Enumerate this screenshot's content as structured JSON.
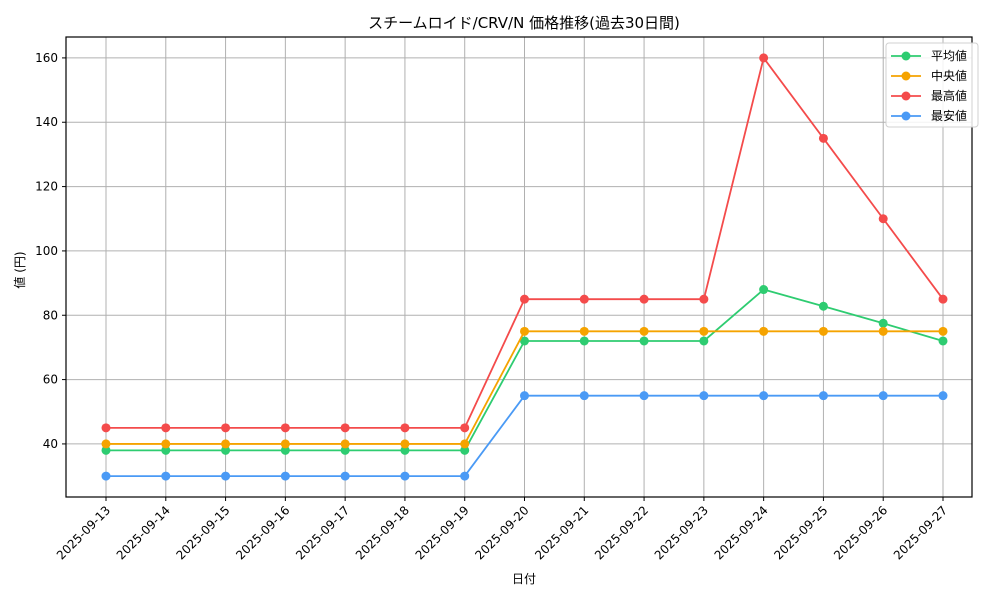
{
  "chart_data": {
    "type": "line",
    "title": "スチームロイド/CRV/N 価格推移(過去30日間)",
    "xlabel": "日付",
    "ylabel": "値 (円)",
    "categories": [
      "2025-09-13",
      "2025-09-14",
      "2025-09-15",
      "2025-09-16",
      "2025-09-17",
      "2025-09-18",
      "2025-09-19",
      "2025-09-20",
      "2025-09-21",
      "2025-09-22",
      "2025-09-23",
      "2025-09-24",
      "2025-09-25",
      "2025-09-26",
      "2025-09-27"
    ],
    "series": [
      {
        "name": "平均値",
        "color": "#2ecc71",
        "values": [
          38,
          38,
          38,
          38,
          38,
          38,
          38,
          72,
          72,
          72,
          72,
          88,
          82.8,
          77.5,
          72
        ]
      },
      {
        "name": "中央値",
        "color": "#f5a300",
        "values": [
          40,
          40,
          40,
          40,
          40,
          40,
          40,
          75,
          75,
          75,
          75,
          75,
          75,
          75,
          75
        ]
      },
      {
        "name": "最高値",
        "color": "#f44b4b",
        "values": [
          45,
          45,
          45,
          45,
          45,
          45,
          45,
          85,
          85,
          85,
          85,
          160,
          135,
          110,
          85
        ]
      },
      {
        "name": "最安値",
        "color": "#4a9af5",
        "values": [
          30,
          30,
          30,
          30,
          30,
          30,
          30,
          55,
          55,
          55,
          55,
          55,
          55,
          55,
          55
        ]
      }
    ],
    "yticks": [
      40,
      60,
      80,
      100,
      120,
      140,
      160
    ],
    "ylim": [
      23.5,
      166.5
    ],
    "grid": true,
    "legend_position": "upper right",
    "x_tick_rotation": 45
  }
}
